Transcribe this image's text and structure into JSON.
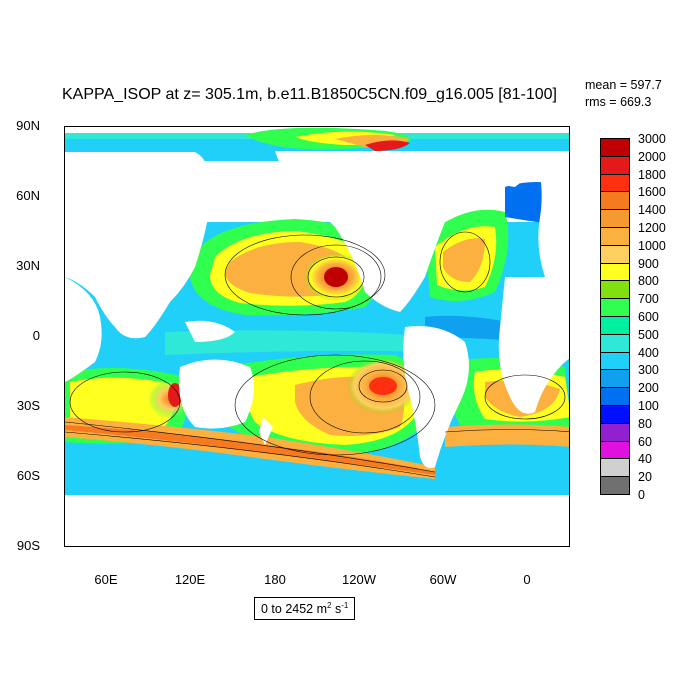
{
  "title": "KAPPA_ISOP at z= 305.1m, b.e11.B1850C5CN.f09_g16.005 [81-100]",
  "stats": {
    "mean": "mean = 597.7",
    "rms": "rms = 669.3"
  },
  "y_ticks": [
    "90N",
    "60N",
    "30N",
    "0",
    "30S",
    "60S",
    "90S"
  ],
  "x_ticks": [
    "60E",
    "120E",
    "180",
    "120W",
    "60W",
    "0"
  ],
  "colorbar": {
    "labels": [
      "3000",
      "2000",
      "1800",
      "1600",
      "1400",
      "1200",
      "1000",
      "900",
      "800",
      "700",
      "600",
      "500",
      "400",
      "300",
      "200",
      "100",
      "80",
      "60",
      "40",
      "20",
      "0"
    ],
    "colors": [
      "#c00000",
      "#e41a1a",
      "#ff3010",
      "#f57a20",
      "#f59a30",
      "#fbb040",
      "#ffd060",
      "#ffff20",
      "#80e010",
      "#30ff50",
      "#00f0a0",
      "#30e8d8",
      "#20d0f8",
      "#10a0f0",
      "#0070f0",
      "#0010ff",
      "#9020d0",
      "#e010e0",
      "#d0d0d0",
      "#707070"
    ]
  },
  "range_label": {
    "text": "0 to 2452 m",
    "sup1": "2",
    "mid": " s",
    "sup2": "-1"
  }
}
